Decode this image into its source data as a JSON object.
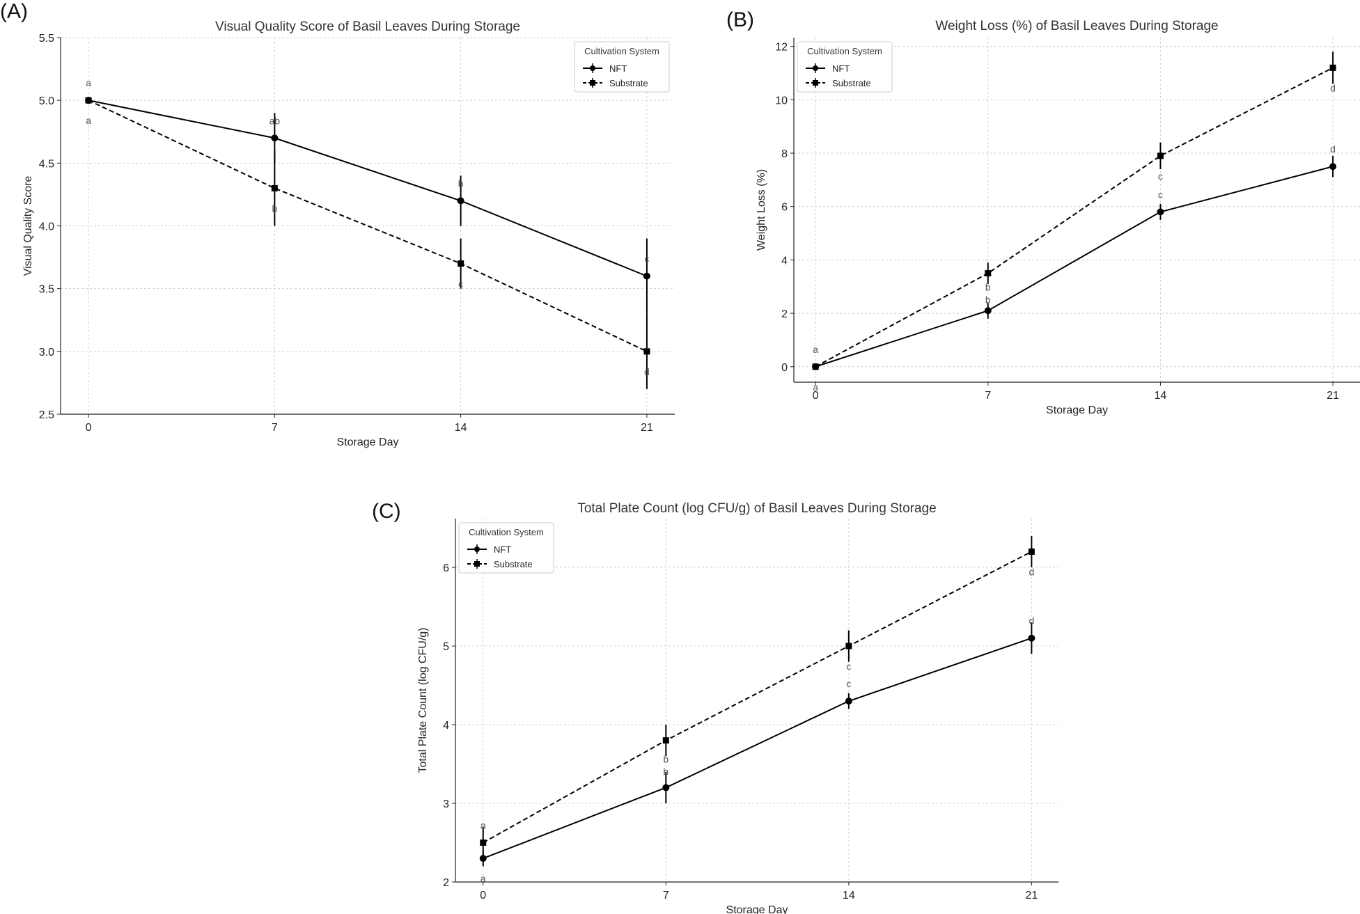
{
  "chart_data": [
    {
      "panel": "(A)",
      "type": "line",
      "title": "Visual Quality Score of Basil Leaves During Storage",
      "xlabel": "Storage Day",
      "ylabel": "Visual Quality Score",
      "x": [
        0,
        7,
        14,
        21
      ],
      "xticks": [
        "0",
        "7",
        "14",
        "21"
      ],
      "xlim": [
        -1.05,
        22.05
      ],
      "ylim": [
        2.5,
        5.5
      ],
      "yticks": [
        "2.5",
        "3.0",
        "3.5",
        "4.0",
        "4.5",
        "5.0",
        "5.5"
      ],
      "grid": true,
      "legend": {
        "title": "Cultivation System",
        "placement": "top-right"
      },
      "series": [
        {
          "name": "NFT",
          "marker": "circle",
          "linestyle": "solid",
          "values": [
            5.0,
            4.7,
            4.2,
            3.6
          ],
          "errors": [
            0,
            0.2,
            0.2,
            0.3
          ],
          "letters": [
            "a",
            "ab",
            "b",
            "c"
          ],
          "letter_position": "above"
        },
        {
          "name": "Substrate",
          "marker": "square",
          "linestyle": "dashed",
          "values": [
            5.0,
            4.3,
            3.7,
            3.0
          ],
          "errors": [
            0,
            0.3,
            0.2,
            0.3
          ],
          "letters": [
            "a",
            "b",
            "c",
            "d"
          ],
          "letter_position": "below"
        }
      ]
    },
    {
      "panel": "(B)",
      "type": "line",
      "title": "Weight Loss (%) of Basil Leaves During Storage",
      "xlabel": "Storage Day",
      "ylabel": "Weight Loss (%)",
      "x": [
        0,
        7,
        14,
        21
      ],
      "xticks": [
        "0",
        "7",
        "14",
        "21"
      ],
      "xlim": [
        -0.88,
        22.1
      ],
      "ylim": [
        -0.58,
        12.33
      ],
      "yticks": [
        "0",
        "2",
        "4",
        "6",
        "8",
        "10",
        "12"
      ],
      "grid": true,
      "legend": {
        "title": "Cultivation System",
        "placement": "top-left"
      },
      "series": [
        {
          "name": "NFT",
          "marker": "circle",
          "linestyle": "solid",
          "values": [
            0,
            2.1,
            5.8,
            7.5
          ],
          "errors": [
            0,
            0.3,
            0.3,
            0.4
          ],
          "letters": [
            "a",
            "b",
            "c",
            "d"
          ],
          "letter_position": [
            "below",
            "above",
            "above",
            "above"
          ]
        },
        {
          "name": "Substrate",
          "marker": "square",
          "linestyle": "dashed",
          "values": [
            0,
            3.5,
            7.9,
            11.2
          ],
          "errors": [
            0,
            0.4,
            0.5,
            0.6
          ],
          "letters": [
            "a",
            "b",
            "c",
            "d"
          ],
          "letter_position": [
            "above",
            "below",
            "below",
            "below"
          ]
        }
      ]
    },
    {
      "panel": "(C)",
      "type": "line",
      "title": "Total Plate Count (log CFU/g) of Basil Leaves During Storage",
      "xlabel": "Storage Day",
      "ylabel": "Total Plate Count (log CFU/g)",
      "x": [
        0,
        7,
        14,
        21
      ],
      "xticks": [
        "0",
        "7",
        "14",
        "21"
      ],
      "xlim": [
        -1.06,
        22.03
      ],
      "ylim": [
        2,
        6.62
      ],
      "yticks": [
        "2",
        "3",
        "4",
        "5",
        "6"
      ],
      "grid": true,
      "legend": {
        "title": "Cultivation System",
        "placement": "top-left"
      },
      "series": [
        {
          "name": "NFT",
          "marker": "circle",
          "linestyle": "solid",
          "values": [
            2.3,
            3.2,
            4.3,
            5.1
          ],
          "errors": [
            0.1,
            0.2,
            0.1,
            0.2
          ],
          "letters": [
            "a",
            "b",
            "c",
            "d"
          ],
          "letter_position": [
            "below",
            "above",
            "above",
            "above"
          ]
        },
        {
          "name": "Substrate",
          "marker": "square",
          "linestyle": "dashed",
          "values": [
            2.5,
            3.8,
            5.0,
            6.2
          ],
          "errors": [
            0.2,
            0.2,
            0.2,
            0.2
          ],
          "letters": [
            "a",
            "b",
            "c",
            "d"
          ],
          "letter_position": [
            "above",
            "below",
            "below",
            "below"
          ]
        }
      ]
    }
  ]
}
